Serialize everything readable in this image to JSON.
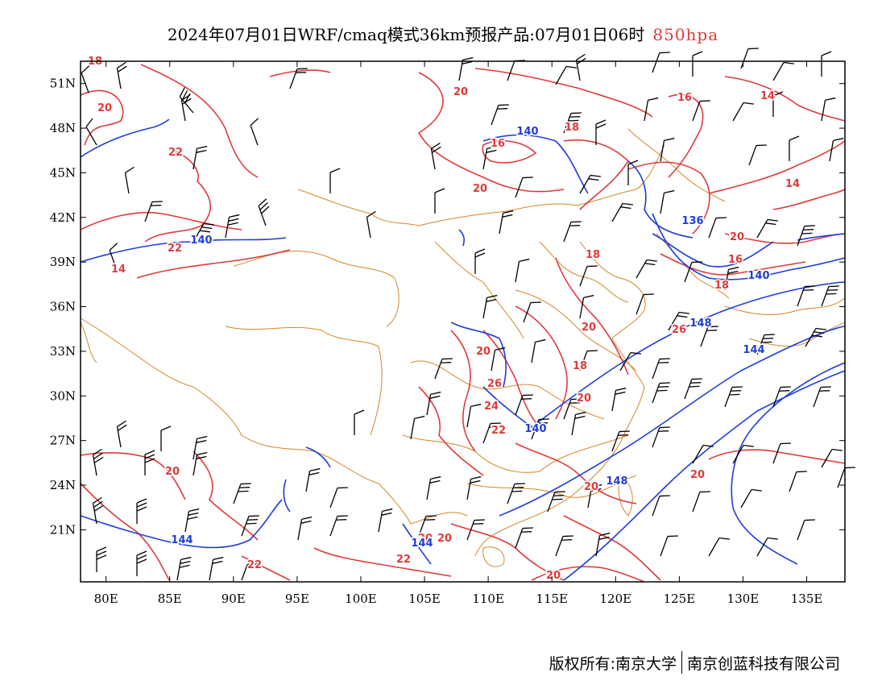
{
  "header": {
    "title": "2024年07月01日WRF/cmaq模式36km预报产品:07月01日06时",
    "level": "850hpa"
  },
  "map": {
    "lat_labels": [
      "51N",
      "48N",
      "45N",
      "42N",
      "39N",
      "36N",
      "33N",
      "30N",
      "27N",
      "24N",
      "21N"
    ],
    "lon_labels": [
      "80E",
      "85E",
      "90E",
      "95E",
      "100E",
      "105E",
      "110E",
      "115E",
      "120E",
      "125E",
      "130E",
      "135E"
    ],
    "lon_range": [
      78,
      138
    ],
    "lat_range": [
      17.5,
      52.5
    ],
    "colors": {
      "temperature": "#e03a3a",
      "height": "#1f3ddb",
      "boundary": "#d4862a",
      "wind": "#000000",
      "level": "#e03a3a"
    },
    "temperature_labels": [
      "18",
      "20",
      "22",
      "20",
      "16",
      "18",
      "14",
      "16",
      "22",
      "14",
      "20",
      "14",
      "18",
      "16",
      "18",
      "20",
      "20",
      "26",
      "20",
      "18",
      "26",
      "24",
      "22",
      "20",
      "20",
      "20",
      "22",
      "22",
      "20",
      "20",
      "20",
      "20"
    ],
    "height_labels": [
      "140",
      "140",
      "136",
      "140",
      "144",
      "148",
      "140",
      "148",
      "144",
      "144"
    ]
  },
  "footer": {
    "copyright": "版权所有:南京大学",
    "company": "南京创蓝科技有限公司"
  }
}
